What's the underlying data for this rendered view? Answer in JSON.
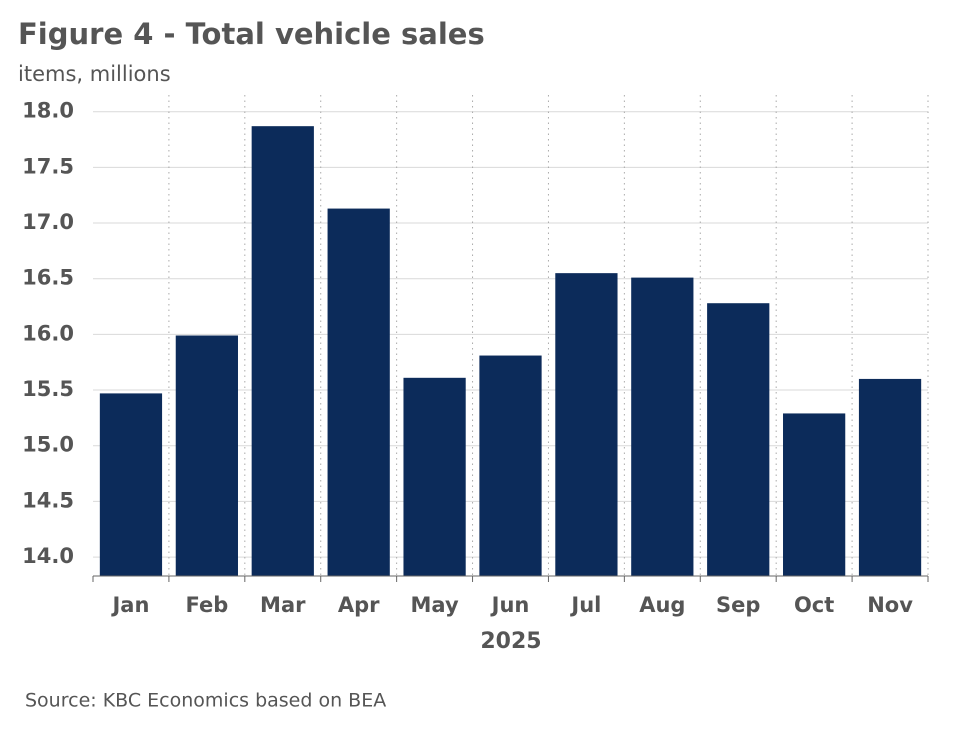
{
  "chart_data": {
    "type": "bar",
    "title": "Figure 4 - Total vehicle sales",
    "subtitle": "items, millions",
    "categories": [
      "Jan",
      "Feb",
      "Mar",
      "Apr",
      "May",
      "Jun",
      "Jul",
      "Aug",
      "Sep",
      "Oct",
      "Nov"
    ],
    "values": [
      15.47,
      15.99,
      17.87,
      17.13,
      15.61,
      15.81,
      16.55,
      16.51,
      16.28,
      15.29,
      15.6
    ],
    "color": "#0c2b5a",
    "x_label": "2025",
    "ylim": [
      13.83,
      18.15
    ],
    "yticks": [
      {
        "value": 14,
        "label": "14.0"
      },
      14.5,
      {
        "value": 15,
        "label": "15.0"
      },
      15.5,
      {
        "value": 16,
        "label": "16.0"
      },
      16.5,
      {
        "value": 17,
        "label": "17.0"
      },
      17.5,
      {
        "value": 18,
        "label": "18.0"
      }
    ],
    "grid": true,
    "source": "Source: KBC Economics based on BEA"
  }
}
